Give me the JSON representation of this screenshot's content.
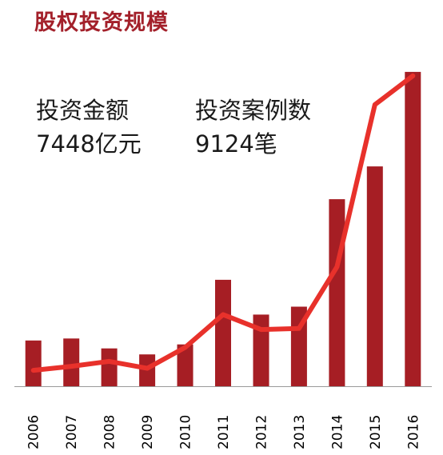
{
  "title": "股权投资规模",
  "stats": {
    "amount_label": "投资金额",
    "amount_value": "7448亿元",
    "deals_label": "投资案例数",
    "deals_value": "9124笔"
  },
  "colors": {
    "bar": "#a61e24",
    "line": "#e8312b",
    "title": "#a3202a"
  },
  "chart_data": {
    "type": "bar",
    "categories": [
      "2006",
      "2007",
      "2008",
      "2009",
      "2010",
      "2011",
      "2012",
      "2013",
      "2014",
      "2015",
      "2016"
    ],
    "series": [
      {
        "type": "bar",
        "values": [
          460,
          480,
          380,
          320,
          420,
          1070,
          720,
          800,
          1880,
          2210,
          3160
        ]
      },
      {
        "type": "line",
        "values": [
          160,
          200,
          250,
          180,
          390,
          720,
          570,
          580,
          1200,
          2830,
          3120
        ]
      }
    ],
    "ylim": [
      0,
      3400
    ],
    "grid": false,
    "legend": "none"
  }
}
